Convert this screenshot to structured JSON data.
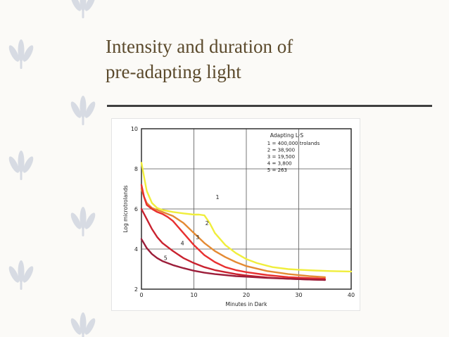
{
  "slide": {
    "title_line1": "Intensity and duration of",
    "title_line2": "pre-adapting light"
  },
  "decor": {
    "icon": "leaf-sprig-icon",
    "color": "#d7dbe3"
  },
  "chart_data": {
    "type": "line",
    "xlabel": "Minutes in Dark",
    "ylabel": "Log microtrolands",
    "xlim": [
      0,
      40
    ],
    "ylim": [
      2,
      10
    ],
    "xticks": [
      0,
      10,
      20,
      30,
      40
    ],
    "yticks": [
      2,
      4,
      6,
      8,
      10
    ],
    "grid": true,
    "legend": {
      "placement": "top-right",
      "title": "Adapting L·S",
      "entries": [
        "1 = 400,000 trolands",
        "2 = 38,900",
        "3 = 19,500",
        "4 = 3,800",
        "5 = 263"
      ]
    },
    "series": [
      {
        "label": "1",
        "color": "#f0ee3c",
        "x": [
          0,
          0.5,
          1,
          2,
          3,
          4,
          6,
          8,
          10,
          11,
          12,
          13,
          14,
          16,
          18,
          20,
          22,
          25,
          28,
          30,
          33,
          36,
          40
        ],
        "y": [
          8.3,
          7.6,
          6.9,
          6.3,
          6.05,
          5.95,
          5.85,
          5.78,
          5.72,
          5.72,
          5.68,
          5.3,
          4.8,
          4.2,
          3.8,
          3.5,
          3.3,
          3.1,
          3.0,
          2.97,
          2.93,
          2.9,
          2.88
        ]
      },
      {
        "label": "2",
        "color": "#e48a33",
        "x": [
          0,
          0.5,
          1,
          2,
          3,
          4,
          6,
          8,
          10,
          12,
          14,
          16,
          18,
          20,
          24,
          28,
          32,
          35
        ],
        "y": [
          7.0,
          6.6,
          6.3,
          6.05,
          5.95,
          5.85,
          5.65,
          5.3,
          4.8,
          4.3,
          3.9,
          3.6,
          3.35,
          3.15,
          2.9,
          2.75,
          2.65,
          2.6
        ]
      },
      {
        "label": "3",
        "color": "#e83030",
        "x": [
          0,
          0.5,
          1,
          2,
          3,
          4,
          5,
          6,
          8,
          10,
          12,
          14,
          16,
          18,
          20,
          24,
          28,
          32,
          35
        ],
        "y": [
          7.2,
          6.6,
          6.2,
          6.0,
          5.85,
          5.75,
          5.6,
          5.4,
          4.8,
          4.2,
          3.7,
          3.35,
          3.1,
          2.95,
          2.85,
          2.7,
          2.6,
          2.55,
          2.52
        ]
      },
      {
        "label": "4",
        "color": "#c9222f",
        "x": [
          0,
          1,
          2,
          3,
          4,
          6,
          8,
          10,
          12,
          14,
          16,
          18,
          20,
          24,
          28,
          32,
          35
        ],
        "y": [
          6.0,
          5.5,
          5.0,
          4.6,
          4.3,
          3.9,
          3.55,
          3.3,
          3.1,
          2.95,
          2.85,
          2.75,
          2.68,
          2.58,
          2.52,
          2.48,
          2.46
        ]
      },
      {
        "label": "5",
        "color": "#9c1e3a",
        "x": [
          0,
          1,
          2,
          3,
          4,
          6,
          8,
          10,
          12,
          14,
          16,
          18,
          20,
          24,
          28,
          32,
          35
        ],
        "y": [
          4.5,
          4.05,
          3.75,
          3.55,
          3.4,
          3.2,
          3.05,
          2.92,
          2.82,
          2.75,
          2.7,
          2.65,
          2.62,
          2.56,
          2.52,
          2.48,
          2.46
        ]
      }
    ]
  }
}
